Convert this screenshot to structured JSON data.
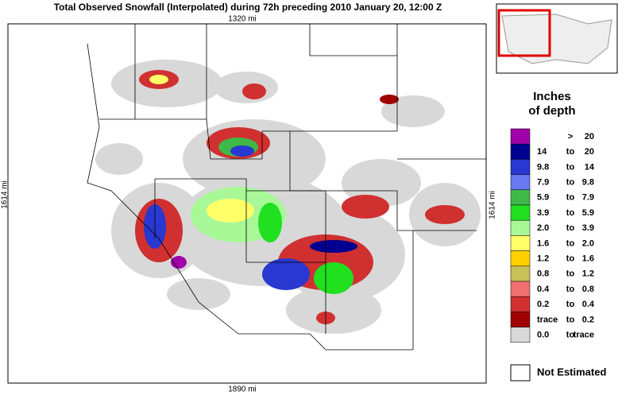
{
  "header": {
    "title": "Total Observed Snowfall (Interpolated) during 72h preceding 2010 January 20, 12:00 Z"
  },
  "map": {
    "top_scale": "1320 mi",
    "bottom_scale": "1890 mi",
    "left_scale": "1614 mi",
    "right_scale": "1614 mi"
  },
  "legend": {
    "title_line1": "Inches",
    "title_line2": "of depth",
    "items": [
      {
        "sep": ">",
        "high": "20",
        "color": "#a000a8"
      },
      {
        "low": "14",
        "sep": "to",
        "high": "20",
        "color": "#000090"
      },
      {
        "low": "9.8",
        "sep": "to",
        "high": "14",
        "color": "#2838d0"
      },
      {
        "low": "7.9",
        "sep": "to",
        "high": "9.8",
        "color": "#6878f0"
      },
      {
        "low": "5.9",
        "sep": "to",
        "high": "7.9",
        "color": "#40b848"
      },
      {
        "low": "3.9",
        "sep": "to",
        "high": "5.9",
        "color": "#20e020"
      },
      {
        "low": "2.0",
        "sep": "to",
        "high": "3.9",
        "color": "#a8f898"
      },
      {
        "low": "1.6",
        "sep": "to",
        "high": "2.0",
        "color": "#ffff68"
      },
      {
        "low": "1.2",
        "sep": "to",
        "high": "1.6",
        "color": "#ffd000"
      },
      {
        "low": "0.8",
        "sep": "to",
        "high": "1.2",
        "color": "#c8c058"
      },
      {
        "low": "0.4",
        "sep": "to",
        "high": "0.8",
        "color": "#f07070"
      },
      {
        "low": "0.2",
        "sep": "to",
        "high": "0.4",
        "color": "#d03030"
      },
      {
        "low": "trace",
        "sep": "to",
        "high": "0.2",
        "color": "#a00000"
      },
      {
        "low": "0.0",
        "sep": "to",
        "high": "trace",
        "color": "#d8d8d8"
      }
    ],
    "not_estimated": "Not Estimated"
  }
}
